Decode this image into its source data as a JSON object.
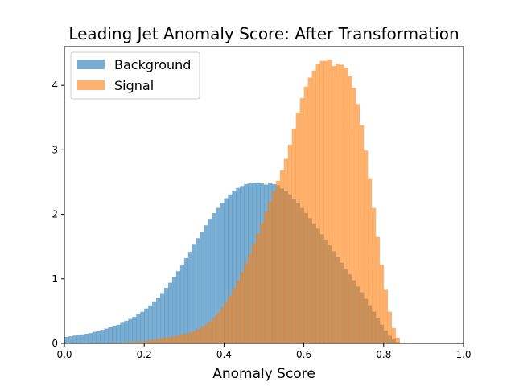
{
  "chart_data": {
    "type": "histogram",
    "title": "Leading Jet Anomaly Score: After Transformation",
    "xlabel": "Anomaly Score",
    "ylabel": "",
    "xlim": [
      0,
      1
    ],
    "ylim": [
      0,
      4.6
    ],
    "xticks": [
      "0.0",
      "0.2",
      "0.4",
      "0.6",
      "0.8",
      "1.0"
    ],
    "yticks": [
      "0",
      "1",
      "2",
      "3",
      "4"
    ],
    "bin_width": 0.01,
    "grid": false,
    "legend_position": "top-left",
    "series": [
      {
        "name": "Background",
        "color": "#1f77b4",
        "alpha": 0.6,
        "x": [
          0.0,
          0.01,
          0.02,
          0.03,
          0.04,
          0.05,
          0.06,
          0.07,
          0.08,
          0.09,
          0.1,
          0.11,
          0.12,
          0.13,
          0.14,
          0.15,
          0.16,
          0.17,
          0.18,
          0.19,
          0.2,
          0.21,
          0.22,
          0.23,
          0.24,
          0.25,
          0.26,
          0.27,
          0.28,
          0.29,
          0.3,
          0.31,
          0.32,
          0.33,
          0.34,
          0.35,
          0.36,
          0.37,
          0.38,
          0.39,
          0.4,
          0.41,
          0.42,
          0.43,
          0.44,
          0.45,
          0.46,
          0.47,
          0.48,
          0.49,
          0.5,
          0.51,
          0.52,
          0.53,
          0.54,
          0.55,
          0.56,
          0.57,
          0.58,
          0.59,
          0.6,
          0.61,
          0.62,
          0.63,
          0.64,
          0.65,
          0.66,
          0.67,
          0.68,
          0.69,
          0.7,
          0.71,
          0.72,
          0.73,
          0.74,
          0.75,
          0.76,
          0.77,
          0.78,
          0.79,
          0.8,
          0.81,
          0.82,
          0.83
        ],
        "values": [
          0.1,
          0.11,
          0.12,
          0.13,
          0.14,
          0.15,
          0.16,
          0.18,
          0.19,
          0.21,
          0.23,
          0.25,
          0.27,
          0.29,
          0.32,
          0.35,
          0.38,
          0.41,
          0.45,
          0.49,
          0.54,
          0.59,
          0.65,
          0.71,
          0.78,
          0.86,
          0.94,
          1.03,
          1.12,
          1.22,
          1.32,
          1.42,
          1.53,
          1.63,
          1.73,
          1.83,
          1.93,
          2.02,
          2.1,
          2.18,
          2.25,
          2.31,
          2.36,
          2.41,
          2.44,
          2.47,
          2.48,
          2.49,
          2.49,
          2.48,
          2.46,
          2.49,
          2.47,
          2.45,
          2.4,
          2.36,
          2.31,
          2.24,
          2.17,
          2.1,
          2.02,
          1.94,
          1.86,
          1.78,
          1.69,
          1.61,
          1.52,
          1.43,
          1.34,
          1.25,
          1.16,
          1.07,
          0.98,
          0.88,
          0.79,
          0.69,
          0.59,
          0.49,
          0.39,
          0.29,
          0.2,
          0.12,
          0.06,
          0.02
        ]
      },
      {
        "name": "Signal",
        "color": "#ff7f0e",
        "alpha": 0.6,
        "x": [
          0.0,
          0.01,
          0.02,
          0.03,
          0.04,
          0.05,
          0.06,
          0.07,
          0.08,
          0.09,
          0.1,
          0.11,
          0.12,
          0.13,
          0.14,
          0.15,
          0.16,
          0.17,
          0.18,
          0.19,
          0.2,
          0.21,
          0.22,
          0.23,
          0.24,
          0.25,
          0.26,
          0.27,
          0.28,
          0.29,
          0.3,
          0.31,
          0.32,
          0.33,
          0.34,
          0.35,
          0.36,
          0.37,
          0.38,
          0.39,
          0.4,
          0.41,
          0.42,
          0.43,
          0.44,
          0.45,
          0.46,
          0.47,
          0.48,
          0.49,
          0.5,
          0.51,
          0.52,
          0.53,
          0.54,
          0.55,
          0.56,
          0.57,
          0.58,
          0.59,
          0.6,
          0.61,
          0.62,
          0.63,
          0.64,
          0.65,
          0.66,
          0.67,
          0.68,
          0.69,
          0.7,
          0.71,
          0.72,
          0.73,
          0.74,
          0.75,
          0.76,
          0.77,
          0.78,
          0.79,
          0.8,
          0.81,
          0.82,
          0.83
        ],
        "values": [
          0.0,
          0.0,
          0.0,
          0.0,
          0.0,
          0.0,
          0.0,
          0.0,
          0.0,
          0.0,
          0.0,
          0.01,
          0.01,
          0.01,
          0.01,
          0.02,
          0.02,
          0.02,
          0.03,
          0.03,
          0.04,
          0.05,
          0.06,
          0.07,
          0.08,
          0.09,
          0.1,
          0.11,
          0.12,
          0.14,
          0.15,
          0.17,
          0.19,
          0.22,
          0.25,
          0.29,
          0.34,
          0.4,
          0.47,
          0.55,
          0.64,
          0.74,
          0.85,
          0.97,
          1.1,
          1.24,
          1.39,
          1.54,
          1.7,
          1.87,
          2.04,
          2.2,
          2.36,
          2.52,
          2.68,
          2.86,
          3.08,
          3.33,
          3.58,
          3.8,
          3.98,
          4.12,
          4.23,
          4.33,
          4.38,
          4.38,
          4.4,
          4.3,
          4.34,
          4.32,
          4.27,
          4.14,
          3.96,
          3.71,
          3.38,
          2.99,
          2.56,
          2.1,
          1.65,
          1.22,
          0.83,
          0.49,
          0.24,
          0.09
        ]
      }
    ]
  }
}
